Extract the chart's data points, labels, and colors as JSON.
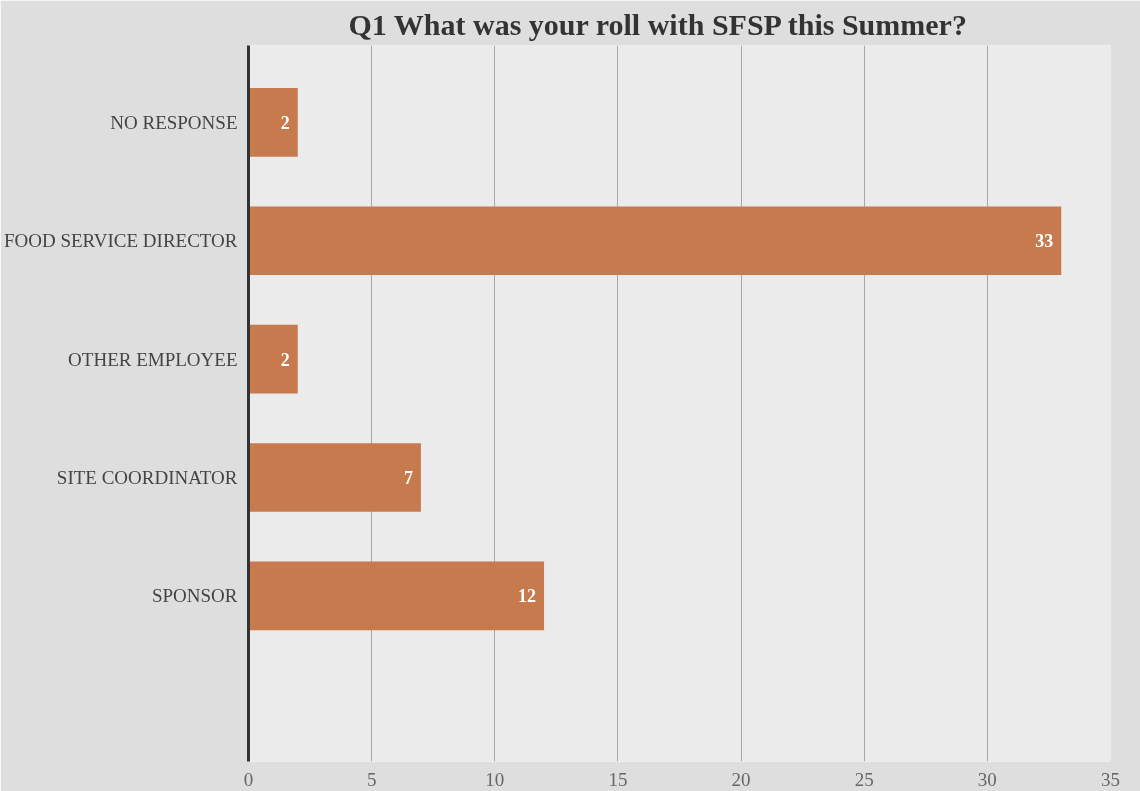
{
  "chart_data": {
    "type": "bar",
    "orientation": "horizontal",
    "title": "Q1 What was your roll with SFSP this Summer?",
    "categories": [
      "NO RESPONSE",
      "FOOD SERVICE DIRECTOR",
      "OTHER EMPLOYEE",
      "SITE COORDINATOR",
      "SPONSOR"
    ],
    "values": [
      2,
      33,
      2,
      7,
      12
    ],
    "color": "#c67a4e",
    "xlim": [
      0,
      35
    ],
    "xticks": [
      0,
      5,
      10,
      15,
      20,
      25,
      30,
      35
    ],
    "grid": "x",
    "data_labels": true
  }
}
